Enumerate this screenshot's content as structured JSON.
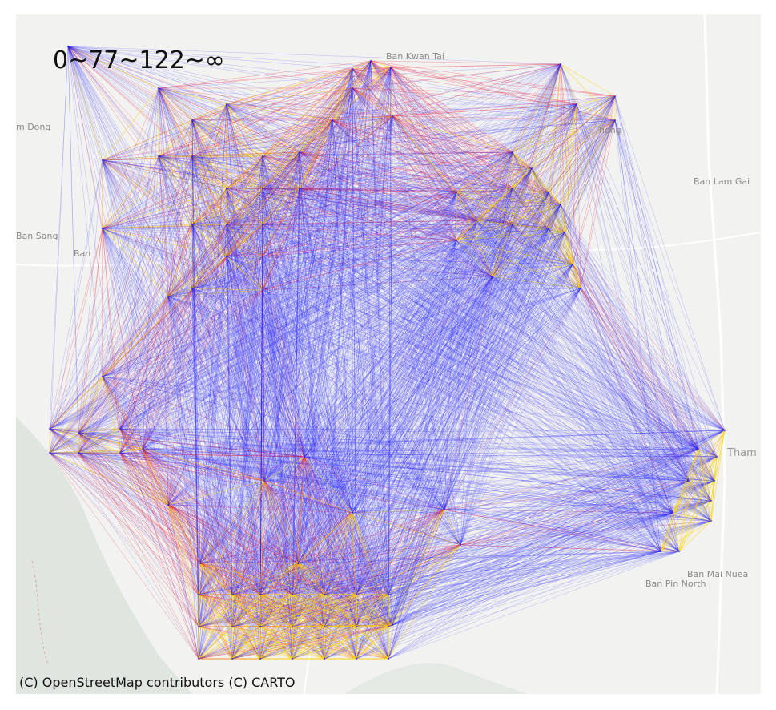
{
  "map": {
    "legend_label": "0~77~122~∞",
    "attribution": "(C) OpenStreetMap contributors (C) CARTO",
    "edge_colors": {
      "low": "#1f1fff",
      "mid": "#e8102a",
      "high": "#ffd400"
    },
    "edge_bins": [
      "0~77",
      "77~122",
      "122~∞"
    ],
    "basemap_colors": {
      "land": "#f2f2f0",
      "water": "#dfe6df",
      "road": "#ffffff",
      "border": "#e0a0a0"
    },
    "place_labels": [
      "Ban Kwan Tai",
      "m Dong",
      "hong",
      "Ban Lam Gai",
      "Ban Sang",
      "Ban",
      "Tham",
      "Ban Mai Nuea",
      "Ban Pin North"
    ]
  }
}
